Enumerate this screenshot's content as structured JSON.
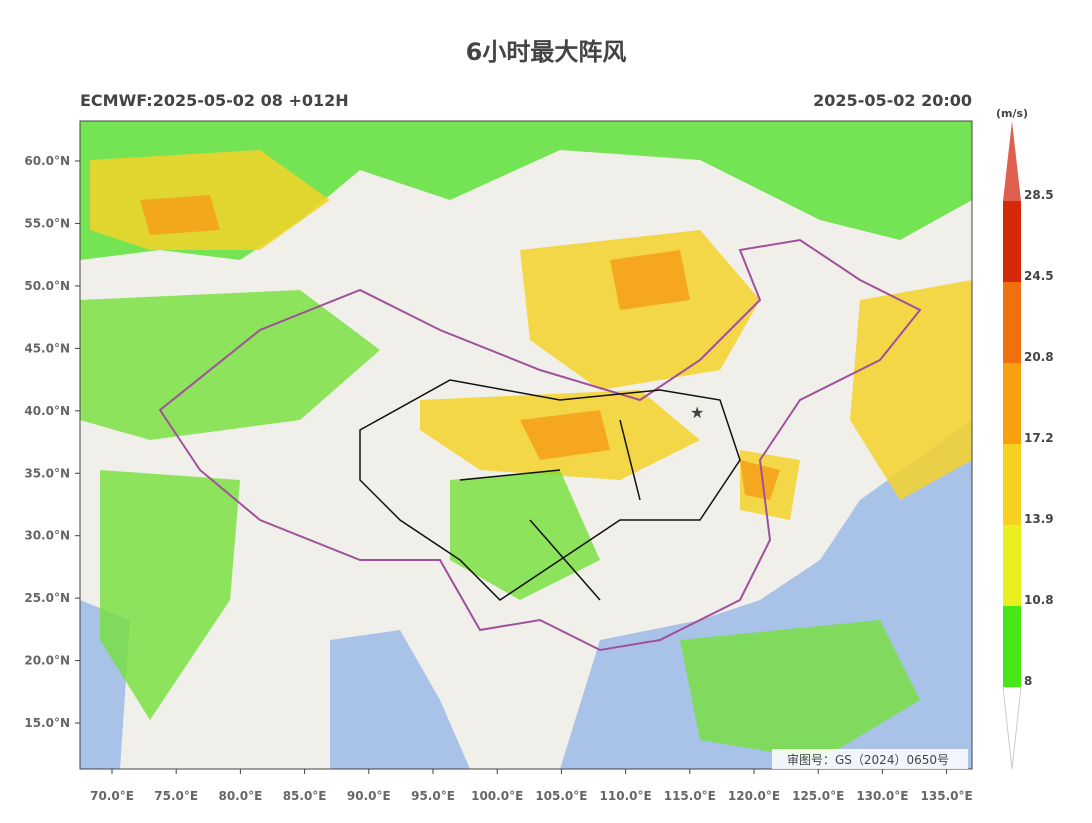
{
  "title": "6小时最大阵风",
  "model_run": "ECMWF:2025-05-02 08 +012H",
  "valid_time": "2025-05-02 20:00",
  "map": {
    "lat_ticks": [
      "60.0°N",
      "55.0°N",
      "50.0°N",
      "45.0°N",
      "40.0°N",
      "35.0°N",
      "30.0°N",
      "25.0°N",
      "20.0°N",
      "15.0°N"
    ],
    "lon_ticks": [
      "70.0°E",
      "75.0°E",
      "80.0°E",
      "85.0°E",
      "90.0°E",
      "95.0°E",
      "100.0°E",
      "105.0°E",
      "110.0°E",
      "115.0°E",
      "120.0°E",
      "125.0°E",
      "130.0°E",
      "135.0°E"
    ],
    "approval": "审图号：GS（2024）0650号"
  },
  "colorbar": {
    "unit": "(m/s)",
    "levels": [
      "8",
      "10.8",
      "13.9",
      "17.2",
      "20.8",
      "24.5",
      "28.5"
    ],
    "colors": [
      "#48e818",
      "#e8f020",
      "#f8d020",
      "#f8a010",
      "#f07010",
      "#d42a0a",
      "#e06050"
    ]
  }
}
